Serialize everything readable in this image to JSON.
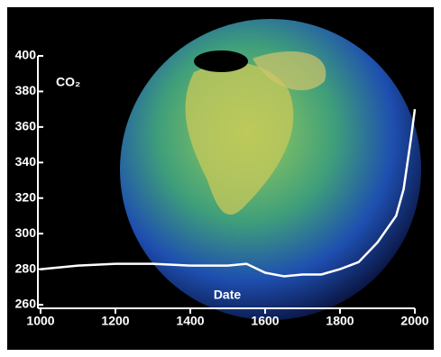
{
  "chart_data": {
    "type": "line",
    "y_label": "CO₂",
    "x_label": "Date",
    "x": [
      1000,
      1100,
      1200,
      1300,
      1400,
      1500,
      1550,
      1600,
      1650,
      1700,
      1750,
      1800,
      1850,
      1900,
      1950,
      1970,
      1990,
      2000
    ],
    "series": [
      {
        "color": "#ffffff",
        "values": [
          280,
          282,
          283,
          283,
          282,
          282,
          283,
          278,
          276,
          277,
          277,
          280,
          284,
          295,
          310,
          325,
          354,
          370
        ]
      }
    ],
    "xlim": [
      1000,
      2000
    ],
    "xticks": [
      1000,
      1200,
      1400,
      1600,
      1800,
      2000
    ],
    "ylim": [
      260,
      400
    ],
    "yticks": [
      260,
      280,
      300,
      320,
      340,
      360,
      380,
      400
    ]
  }
}
